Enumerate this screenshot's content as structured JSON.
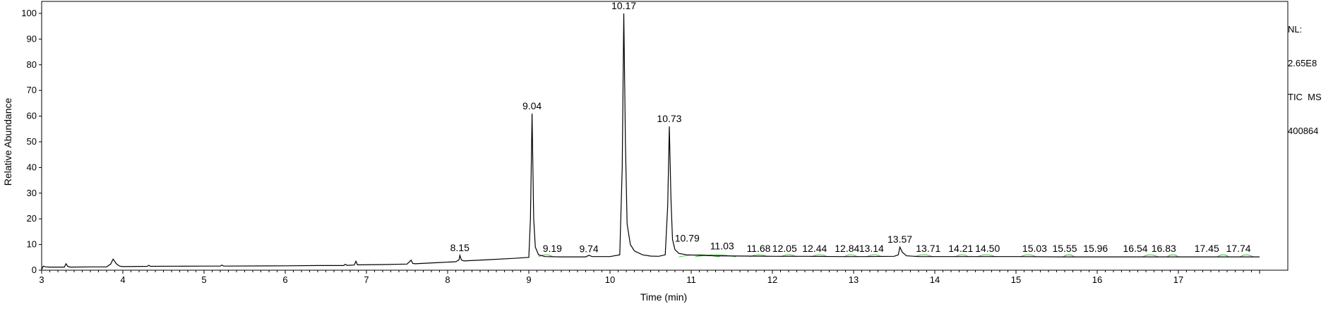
{
  "chart_data": {
    "type": "line",
    "title": "",
    "xlabel": "Time (min)",
    "ylabel": "Relative Abundance",
    "xlim": [
      3,
      18
    ],
    "ylim": [
      0,
      100
    ],
    "x_ticks": [
      3,
      4,
      5,
      6,
      7,
      8,
      9,
      10,
      11,
      12,
      13,
      14,
      15,
      16,
      17
    ],
    "y_ticks": [
      0,
      10,
      20,
      30,
      40,
      50,
      60,
      70,
      80,
      90,
      100
    ],
    "grid": false,
    "legend": "none",
    "series": [
      {
        "color": "#000000",
        "x": [
          3.0,
          3.02,
          3.05,
          3.1,
          3.28,
          3.3,
          3.32,
          3.35,
          3.6,
          3.8,
          3.85,
          3.88,
          3.92,
          3.96,
          4.0,
          4.3,
          4.32,
          4.34,
          5.0,
          5.2,
          5.22,
          5.24,
          6.0,
          6.4,
          6.6,
          6.72,
          6.74,
          6.76,
          6.85,
          6.87,
          6.89,
          7.2,
          7.5,
          7.55,
          7.57,
          7.6,
          7.9,
          8.1,
          8.14,
          8.15,
          8.17,
          8.2,
          8.5,
          8.8,
          9.0,
          9.02,
          9.04,
          9.06,
          9.08,
          9.12,
          9.2,
          9.4,
          9.7,
          9.74,
          9.78,
          10.0,
          10.12,
          10.15,
          10.17,
          10.19,
          10.21,
          10.25,
          10.3,
          10.4,
          10.5,
          10.6,
          10.68,
          10.71,
          10.73,
          10.75,
          10.77,
          10.8,
          10.85,
          10.95,
          11.1,
          11.3,
          11.68,
          12.05,
          12.44,
          12.84,
          13.14,
          13.5,
          13.55,
          13.57,
          13.6,
          13.65,
          13.8,
          14.21,
          14.5,
          15.03,
          15.55,
          15.96,
          16.54,
          16.83,
          17.45,
          17.74,
          18.0
        ],
        "y": [
          0.3,
          1.6,
          1.3,
          1.2,
          1.2,
          2.5,
          1.5,
          1.2,
          1.3,
          1.3,
          2.4,
          4.3,
          2.5,
          1.6,
          1.4,
          1.5,
          1.9,
          1.5,
          1.6,
          1.6,
          2.0,
          1.6,
          1.7,
          1.8,
          1.8,
          1.8,
          2.3,
          1.9,
          2.0,
          3.5,
          2.1,
          2.2,
          2.4,
          3.9,
          2.6,
          2.5,
          3.0,
          3.3,
          4.0,
          5.8,
          4.0,
          3.6,
          4.1,
          4.6,
          5.0,
          20.0,
          61.0,
          20.0,
          9.0,
          6.0,
          5.3,
          5.2,
          5.2,
          5.8,
          5.3,
          5.3,
          6.0,
          40.0,
          100.0,
          50.0,
          18.0,
          10.0,
          7.5,
          6.0,
          5.5,
          5.4,
          6.0,
          25.0,
          56.0,
          28.0,
          12.0,
          8.0,
          6.5,
          6.0,
          5.8,
          5.6,
          5.5,
          5.4,
          5.4,
          5.3,
          5.3,
          5.4,
          6.0,
          9.0,
          7.0,
          5.6,
          5.3,
          5.3,
          5.3,
          5.3,
          5.2,
          5.2,
          5.2,
          5.2,
          5.2,
          5.2,
          5.2
        ]
      }
    ],
    "annotations": [
      {
        "text": "8.15",
        "x": 8.15,
        "y": 5.8
      },
      {
        "text": "9.04",
        "x": 9.04,
        "y": 61.0
      },
      {
        "text": "9.19",
        "x": 9.29,
        "y": 5.5
      },
      {
        "text": "9.74",
        "x": 9.74,
        "y": 5.4
      },
      {
        "text": "10.17",
        "x": 10.17,
        "y": 100.0
      },
      {
        "text": "10.73",
        "x": 10.73,
        "y": 56.0
      },
      {
        "text": "10.79",
        "x": 10.95,
        "y": 9.5
      },
      {
        "text": "11.03",
        "x": 11.38,
        "y": 6.5
      },
      {
        "text": "11.68",
        "x": 11.83,
        "y": 5.5
      },
      {
        "text": "12.05",
        "x": 12.15,
        "y": 5.5
      },
      {
        "text": "12.44",
        "x": 12.52,
        "y": 5.5
      },
      {
        "text": "12.84",
        "x": 12.92,
        "y": 5.5
      },
      {
        "text": "13.14",
        "x": 13.22,
        "y": 5.5
      },
      {
        "text": "13.57",
        "x": 13.57,
        "y": 9.0
      },
      {
        "text": "13.71",
        "x": 13.92,
        "y": 5.5
      },
      {
        "text": "14.21",
        "x": 14.32,
        "y": 5.5
      },
      {
        "text": "14.50",
        "x": 14.65,
        "y": 5.5
      },
      {
        "text": "15.03",
        "x": 15.23,
        "y": 5.5
      },
      {
        "text": "15.55",
        "x": 15.6,
        "y": 5.5
      },
      {
        "text": "15.96",
        "x": 15.98,
        "y": 5.5
      },
      {
        "text": "16.54",
        "x": 16.47,
        "y": 5.5
      },
      {
        "text": "16.83",
        "x": 16.82,
        "y": 5.5
      },
      {
        "text": "17.45",
        "x": 17.35,
        "y": 5.5
      },
      {
        "text": "17.74",
        "x": 17.74,
        "y": 5.5
      }
    ],
    "integration_marks": [
      {
        "x0": 9.12,
        "x1": 9.3
      },
      {
        "x0": 10.85,
        "x1": 11.35
      },
      {
        "x0": 11.05,
        "x1": 11.55
      },
      {
        "x0": 11.72,
        "x1": 11.95
      },
      {
        "x0": 12.1,
        "x1": 12.3
      },
      {
        "x0": 12.48,
        "x1": 12.68
      },
      {
        "x0": 12.88,
        "x1": 13.05
      },
      {
        "x0": 13.16,
        "x1": 13.35
      },
      {
        "x0": 13.75,
        "x1": 13.98
      },
      {
        "x0": 14.25,
        "x1": 14.42
      },
      {
        "x0": 14.52,
        "x1": 14.75
      },
      {
        "x0": 15.05,
        "x1": 15.25
      },
      {
        "x0": 15.58,
        "x1": 15.72
      },
      {
        "x0": 16.56,
        "x1": 16.75
      },
      {
        "x0": 16.86,
        "x1": 17.0
      },
      {
        "x0": 17.48,
        "x1": 17.62
      },
      {
        "x0": 17.76,
        "x1": 17.92
      }
    ],
    "integration_color": "#40c040",
    "info": {
      "line1": "NL:",
      "line2": "2.65E8",
      "line3": "TIC  MS",
      "line4": "400864"
    }
  }
}
